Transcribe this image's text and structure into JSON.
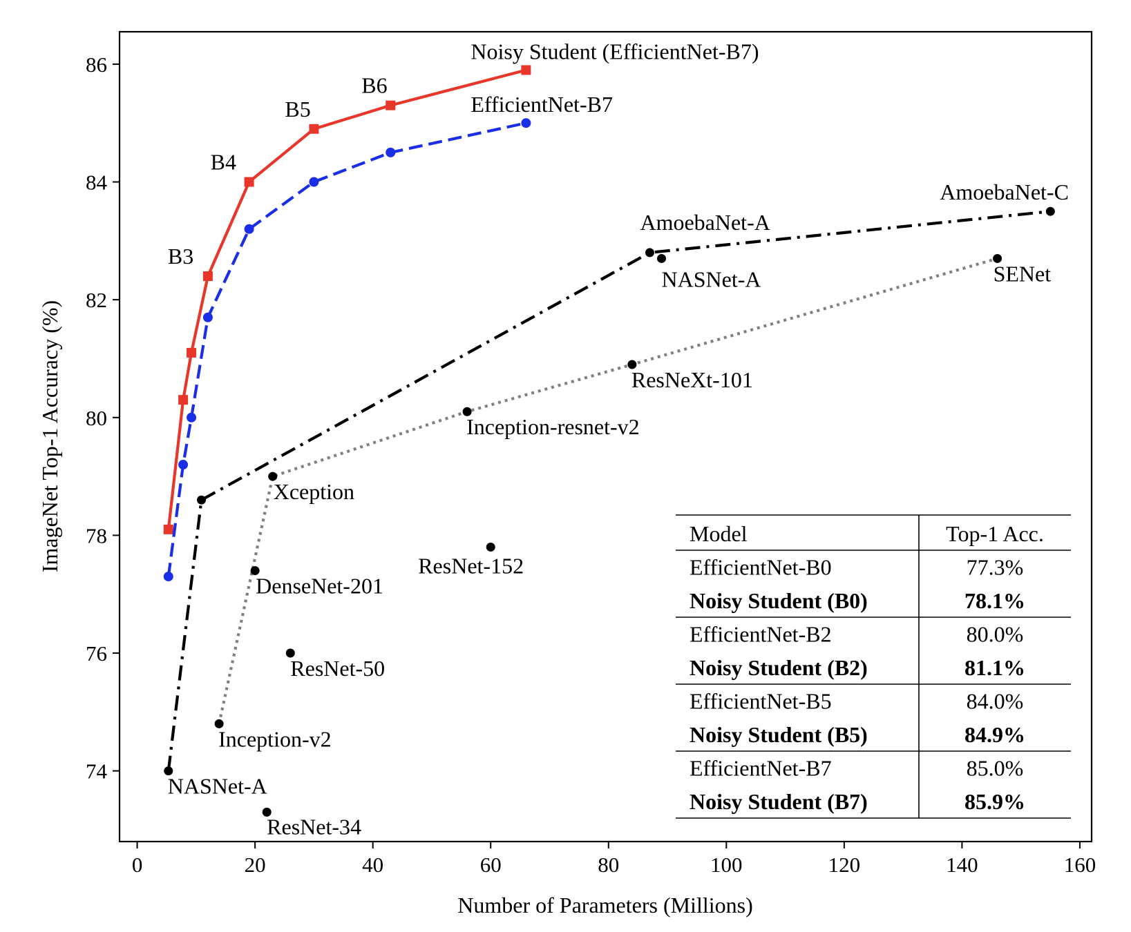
{
  "chart_data": {
    "type": "line",
    "xlabel": "Number of Parameters (Millions)",
    "ylabel": "ImageNet Top-1 Accuracy (%)",
    "xlim": [
      -3,
      162
    ],
    "ylim": [
      72.8,
      86.55
    ],
    "xticks": [
      0,
      20,
      40,
      60,
      80,
      100,
      120,
      140,
      160
    ],
    "yticks": [
      74,
      76,
      78,
      80,
      82,
      84,
      86
    ],
    "grid": false,
    "series": [
      {
        "color": "#e8372a",
        "line_style": "solid",
        "marker": "square",
        "x": [
          5.3,
          7.8,
          9.2,
          12,
          19,
          30,
          43,
          66
        ],
        "y": [
          78.1,
          80.3,
          81.1,
          82.4,
          84.0,
          84.9,
          85.3,
          85.9
        ]
      },
      {
        "color": "#1a2ee8",
        "line_style": "dashed",
        "marker": "circle",
        "x": [
          5.3,
          7.8,
          9.2,
          12,
          19,
          30,
          43,
          66
        ],
        "y": [
          77.3,
          79.2,
          80.0,
          81.7,
          83.2,
          84.0,
          84.5,
          85.0
        ]
      },
      {
        "color": "#000000",
        "line_style": "dashdot",
        "marker": "circle",
        "x": [
          5.3,
          10.9,
          87,
          155
        ],
        "y": [
          74.0,
          78.6,
          82.8,
          83.5
        ]
      },
      {
        "color": "#808080",
        "line_style": "dotted",
        "marker": "circle",
        "x": [
          13.9,
          23,
          56,
          84,
          146
        ],
        "y": [
          74.8,
          79.0,
          80.1,
          80.9,
          82.7
        ]
      }
    ],
    "points": [
      {
        "x": 20,
        "y": 77.4
      },
      {
        "x": 60,
        "y": 77.8
      },
      {
        "x": 26,
        "y": 76.0
      },
      {
        "x": 22,
        "y": 73.3
      },
      {
        "x": 89,
        "y": 82.7
      }
    ],
    "annotations": [
      {
        "text": "Noisy Student (EfficientNet-B7)",
        "x": 66,
        "y": 85.9
      },
      {
        "text": "B6",
        "x": 43,
        "y": 85.3
      },
      {
        "text": "B5",
        "x": 30,
        "y": 84.9
      },
      {
        "text": "B4",
        "x": 19,
        "y": 84.0
      },
      {
        "text": "B3",
        "x": 12,
        "y": 82.4
      },
      {
        "text": "EfficientNet-B7",
        "x": 66,
        "y": 85.0
      },
      {
        "text": "AmoebaNet-C",
        "x": 155,
        "y": 83.5
      },
      {
        "text": "AmoebaNet-A",
        "x": 87,
        "y": 82.8
      },
      {
        "text": "NASNet-A",
        "x": 89,
        "y": 82.7
      },
      {
        "text": "SENet",
        "x": 146,
        "y": 82.7
      },
      {
        "text": "ResNeXt-101",
        "x": 84,
        "y": 80.9
      },
      {
        "text": "Inception-resnet-v2",
        "x": 56,
        "y": 80.1
      },
      {
        "text": "Xception",
        "x": 23,
        "y": 79.0
      },
      {
        "text": "ResNet-152",
        "x": 60,
        "y": 77.8
      },
      {
        "text": "DenseNet-201",
        "x": 20,
        "y": 77.4
      },
      {
        "text": "ResNet-50",
        "x": 26,
        "y": 76.0
      },
      {
        "text": "Inception-v2",
        "x": 13.9,
        "y": 74.8
      },
      {
        "text": "NASNet-A",
        "x": 5.3,
        "y": 74.0
      },
      {
        "text": "ResNet-34",
        "x": 22,
        "y": 73.3
      }
    ],
    "table": {
      "headers": [
        "Model",
        "Top-1 Acc."
      ],
      "rows": [
        {
          "model": "EfficientNet-B0",
          "acc": "77.3%",
          "bold": false
        },
        {
          "model": "Noisy Student (B0)",
          "acc": "78.1%",
          "bold": true
        },
        {
          "model": "EfficientNet-B2",
          "acc": "80.0%",
          "bold": false
        },
        {
          "model": "Noisy Student (B2)",
          "acc": "81.1%",
          "bold": true
        },
        {
          "model": "EfficientNet-B5",
          "acc": "84.0%",
          "bold": false
        },
        {
          "model": "Noisy Student (B5)",
          "acc": "84.9%",
          "bold": true
        },
        {
          "model": "EfficientNet-B7",
          "acc": "85.0%",
          "bold": false
        },
        {
          "model": "Noisy Student (B7)",
          "acc": "85.9%",
          "bold": true
        }
      ]
    }
  }
}
